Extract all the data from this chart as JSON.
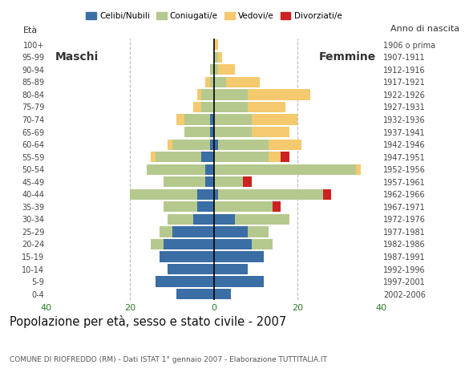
{
  "age_groups": [
    "0-4",
    "5-9",
    "10-14",
    "15-19",
    "20-24",
    "25-29",
    "30-34",
    "35-39",
    "40-44",
    "45-49",
    "50-54",
    "55-59",
    "60-64",
    "65-69",
    "70-74",
    "75-79",
    "80-84",
    "85-89",
    "90-94",
    "95-99",
    "100+"
  ],
  "birth_years": [
    "2002-2006",
    "1997-2001",
    "1992-1996",
    "1987-1991",
    "1982-1986",
    "1977-1981",
    "1972-1976",
    "1967-1971",
    "1962-1966",
    "1957-1961",
    "1952-1956",
    "1947-1951",
    "1942-1946",
    "1937-1941",
    "1932-1936",
    "1927-1931",
    "1922-1926",
    "1917-1921",
    "1912-1916",
    "1907-1911",
    "1906 o prima"
  ],
  "colors": {
    "celibe": "#3a6ea5",
    "coniugato": "#b5c98e",
    "vedovo": "#f5c96e",
    "divorziato": "#cc2222"
  },
  "male": {
    "celibe": [
      9,
      14,
      11,
      13,
      12,
      10,
      5,
      4,
      4,
      2,
      2,
      3,
      1,
      1,
      1,
      0,
      0,
      0,
      0,
      0,
      0
    ],
    "coniugato": [
      0,
      0,
      0,
      0,
      3,
      3,
      6,
      8,
      16,
      10,
      14,
      11,
      9,
      6,
      6,
      3,
      3,
      1,
      1,
      0,
      0
    ],
    "vedovo": [
      0,
      0,
      0,
      0,
      0,
      0,
      0,
      0,
      0,
      0,
      0,
      1,
      1,
      0,
      2,
      2,
      1,
      1,
      0,
      0,
      0
    ],
    "divorziato": [
      0,
      0,
      0,
      0,
      0,
      0,
      0,
      0,
      0,
      0,
      0,
      0,
      0,
      0,
      0,
      0,
      0,
      0,
      0,
      0,
      0
    ]
  },
  "female": {
    "celibe": [
      4,
      12,
      8,
      12,
      9,
      8,
      5,
      0,
      1,
      0,
      0,
      0,
      1,
      0,
      0,
      0,
      0,
      0,
      0,
      0,
      0
    ],
    "coniugato": [
      0,
      0,
      0,
      0,
      5,
      5,
      13,
      14,
      25,
      7,
      34,
      13,
      12,
      9,
      9,
      8,
      8,
      3,
      1,
      1,
      0
    ],
    "vedovo": [
      0,
      0,
      0,
      0,
      0,
      0,
      0,
      0,
      0,
      0,
      1,
      3,
      8,
      9,
      11,
      9,
      15,
      8,
      4,
      1,
      1
    ],
    "divorziato": [
      0,
      0,
      0,
      0,
      0,
      0,
      0,
      2,
      2,
      2,
      0,
      2,
      0,
      0,
      0,
      0,
      0,
      0,
      0,
      0,
      0
    ]
  },
  "title": "Popolazione per età, sesso e stato civile - 2007",
  "subtitle": "COMUNE DI RIOFREDDO (RM) - Dati ISTAT 1° gennaio 2007 - Elaborazione TUTTITALIA.IT",
  "xlabel_left": "Età",
  "xlabel_right": "Anno di nascita",
  "xlim": 40,
  "legend_labels": [
    "Celibi/Nubili",
    "Coniugati/e",
    "Vedovi/e",
    "Divorziati/e"
  ],
  "label_maschi": "Maschi",
  "label_femmine": "Femmine",
  "bg_color": "#ffffff",
  "grid_color": "#bbbbbb",
  "tick_color": "#2a7a2a"
}
